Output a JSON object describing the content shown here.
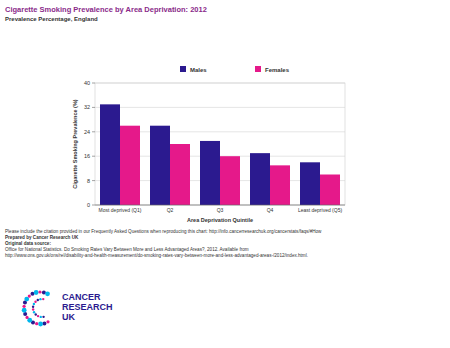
{
  "chart_data": {
    "type": "bar",
    "title": "Cigarette Smoking Prevalence by Area Deprivation: 2012",
    "subtitle": "Prevalence Percentage, England",
    "x_label": "Area Deprivation Quintile",
    "y_label": "Cigarette Smoking Prevalence (%)",
    "categories": [
      "Most deprived (Q1)",
      "Q2",
      "Q3",
      "Q4",
      "Least deprived (Q5)"
    ],
    "series": [
      {
        "name": "Males",
        "color": "#2b1a8f",
        "values": [
          33,
          26,
          21,
          17,
          14
        ]
      },
      {
        "name": "Females",
        "color": "#e5198a",
        "values": [
          26,
          20,
          16,
          13,
          10
        ]
      }
    ],
    "ylim": [
      0,
      40
    ],
    "yticks": [
      0,
      8,
      16,
      24,
      32,
      40
    ],
    "grid": true,
    "legend": "top"
  },
  "footer": [
    "Please include the citation provided in our Frequently Asked Questions when reproducing this chart: http://info.cancerresearchuk.org/cancerstats/faqs/#How",
    "Prepared by Cancer Research UK",
    "Original data source:",
    "Office for National Statistics. Do Smoking Rates Vary Between More and Less Advantaged Areas?, 2012. Available from",
    "http://www.ons.gov.uk/ons/rel/disability-and-health-measurement/do-smoking-rates-vary-between-more-and-less-advantaged-areas-/2012/index.html."
  ],
  "logo": [
    "CANCER",
    "RESEARCH",
    "UK"
  ]
}
